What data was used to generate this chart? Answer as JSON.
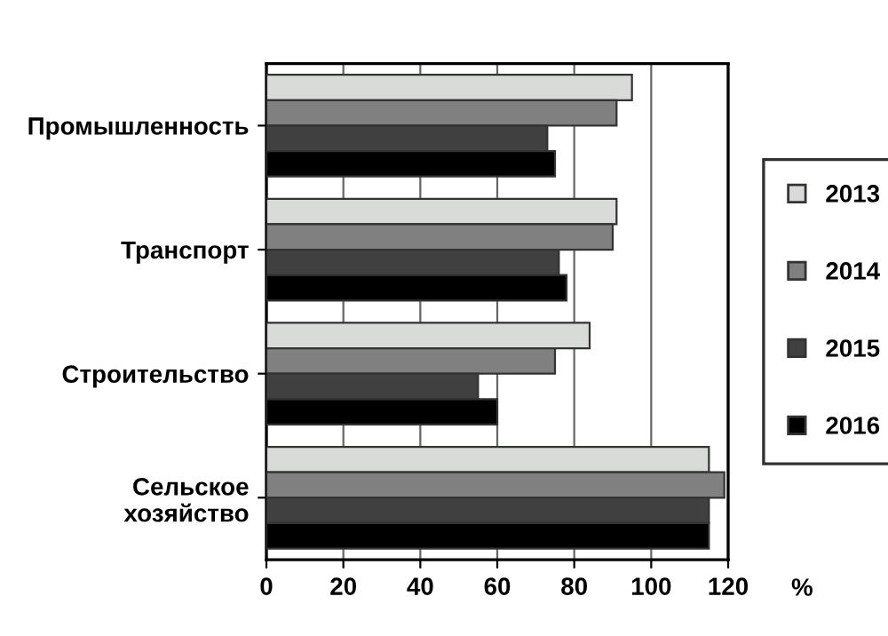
{
  "chart_data": {
    "type": "bar",
    "orientation": "horizontal",
    "xlabel": "%",
    "categories": [
      "Промышленность",
      "Транспорт",
      "Строительство",
      "Сельское\nхозяйство"
    ],
    "series": [
      {
        "name": "2013",
        "color": "#d9dbd9",
        "values": [
          95,
          91,
          84,
          115
        ]
      },
      {
        "name": "2014",
        "color": "#808080",
        "values": [
          91,
          90,
          75,
          119
        ]
      },
      {
        "name": "2015",
        "color": "#404040",
        "values": [
          73,
          76,
          55,
          115
        ]
      },
      {
        "name": "2016",
        "color": "#000000",
        "values": [
          75,
          78,
          60,
          115
        ]
      }
    ],
    "xlim": [
      0,
      120
    ],
    "xticks": [
      0,
      20,
      40,
      60,
      80,
      100,
      120
    ],
    "grid": "x",
    "legend": "right"
  }
}
